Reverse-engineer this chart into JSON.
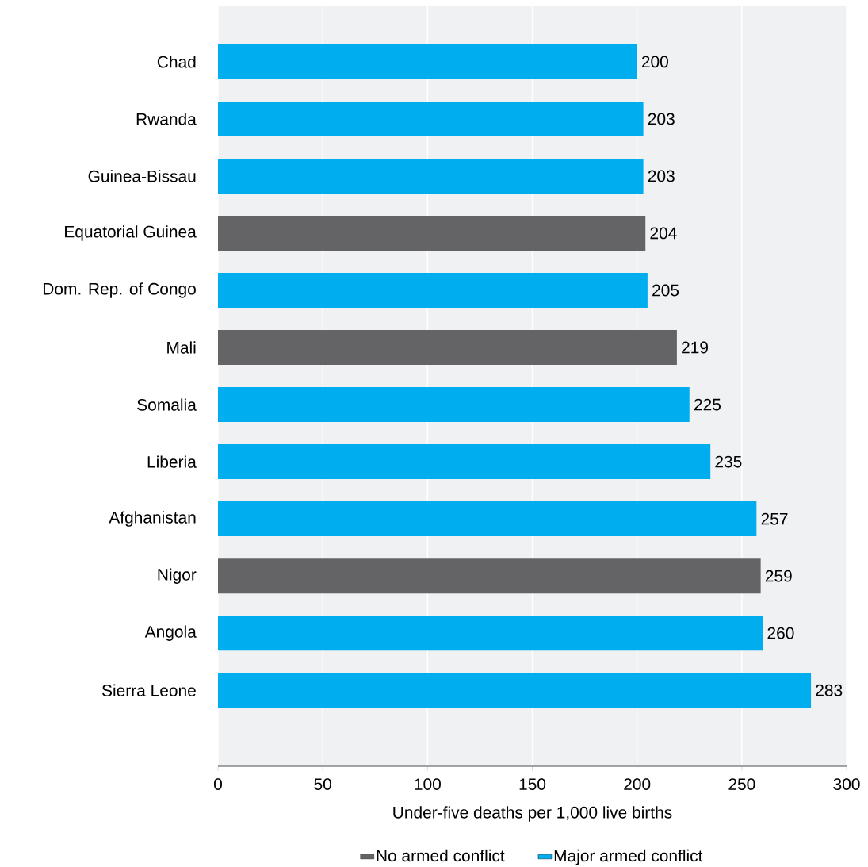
{
  "chart_data": {
    "type": "bar",
    "orientation": "horizontal",
    "xlabel": "Under-five deaths per 1,000 live births",
    "categories": [
      "Chad",
      "Rwanda",
      "Guinea-Bissau",
      "Equatorial Guinea",
      "Dom. Rep. of Congo",
      "Mali",
      "Somalia",
      "Liberia",
      "Afghanistan",
      "Nigor",
      "Angola",
      "Sierra Leone"
    ],
    "series": [
      {
        "name": "No armed conflict",
        "color": "#646466",
        "values": [
          null,
          null,
          null,
          204,
          null,
          219,
          null,
          null,
          null,
          259,
          null,
          null
        ]
      },
      {
        "name": "Major armed conflict",
        "color": "#00aeef",
        "values": [
          200,
          203,
          203,
          null,
          205,
          null,
          225,
          235,
          257,
          null,
          260,
          283
        ]
      }
    ],
    "xlim": [
      0,
      300
    ],
    "xticks": [
      0,
      50,
      100,
      150,
      200,
      250,
      300
    ],
    "grid": "x",
    "legend": "bottom",
    "data_labels": true
  }
}
